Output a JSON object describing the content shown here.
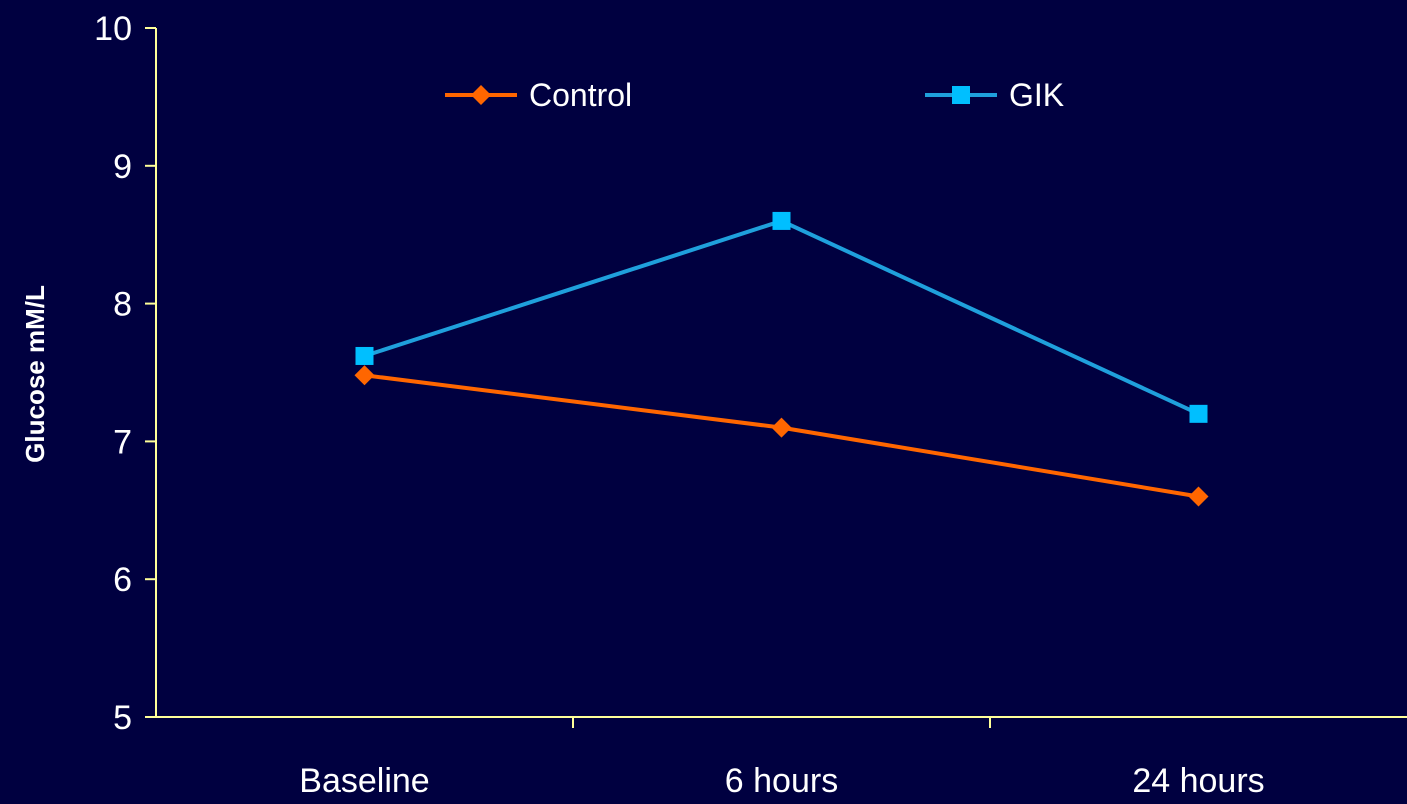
{
  "chart_data": {
    "type": "line",
    "title": "",
    "ylabel": "Glucose mM/L",
    "xlabel": "",
    "categories": [
      "Baseline",
      "6 hours",
      "24 hours"
    ],
    "ylim": [
      5,
      10
    ],
    "yticks": [
      5,
      6,
      7,
      8,
      9,
      10
    ],
    "grid": false,
    "legend_position": "top",
    "series": [
      {
        "name": "Control",
        "values": [
          7.48,
          7.1,
          6.6
        ],
        "color": "#ff6600",
        "marker": "diamond"
      },
      {
        "name": "GIK",
        "values": [
          7.62,
          8.6,
          7.2
        ],
        "color": "#00bfff",
        "line_color": "#1fa0dc",
        "marker": "square"
      }
    ],
    "axis_color": "#ffff99"
  }
}
